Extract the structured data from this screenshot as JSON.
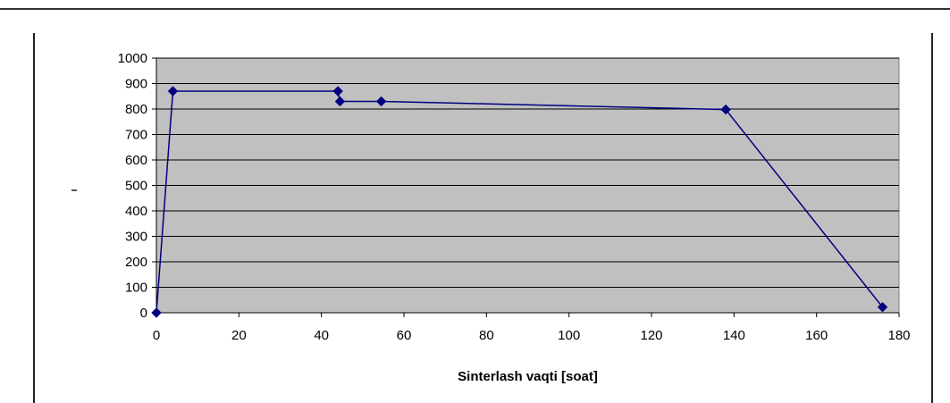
{
  "chart_data": {
    "type": "line",
    "title": "",
    "xlabel": "Sinterlash vaqti [soat]",
    "ylabel": "",
    "xlim": [
      0,
      180
    ],
    "ylim": [
      0,
      1000
    ],
    "xticks": [
      0,
      20,
      40,
      60,
      80,
      100,
      120,
      140,
      160,
      180
    ],
    "yticks": [
      0,
      100,
      200,
      300,
      400,
      500,
      600,
      700,
      800,
      900,
      1000
    ],
    "grid": "horizontal",
    "legend": "none",
    "series": [
      {
        "x": [
          0,
          4,
          44,
          44.5,
          54.5,
          138,
          176
        ],
        "y": [
          0,
          870,
          870,
          830,
          830,
          798,
          22
        ]
      }
    ]
  },
  "colors": {
    "plot_background": "#c0c0c0",
    "line": "#000080",
    "marker": "#000080",
    "gridline": "#000000",
    "frame": "#808080"
  }
}
